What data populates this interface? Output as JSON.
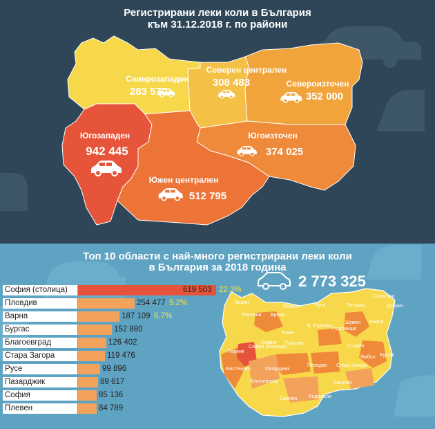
{
  "map_title": {
    "line1": "Регистрирани леки коли в България",
    "line2": "към 31.12.2018 г. по райони"
  },
  "regions": [
    {
      "name": "Северозападен",
      "value": "283 577",
      "color": "#f7d84a"
    },
    {
      "name": "Северен централен",
      "value": "308 483",
      "color": "#f4c045"
    },
    {
      "name": "Североизточен",
      "value": "352 000",
      "color": "#f2a43c"
    },
    {
      "name": "Югозападен",
      "value": "942 445",
      "color": "#e6553a"
    },
    {
      "name": "Югоизточен",
      "value": "374 025",
      "color": "#ef8a3a"
    },
    {
      "name": "Южен централен",
      "value": "512 795",
      "color": "#eb7436"
    }
  ],
  "chart_title": {
    "line1": "Топ 10 области с най-много регистрирани леки коли",
    "line2": "в България за 2018 година"
  },
  "total": "2 773 325",
  "province_labels": [
    "Видин",
    "Монтана",
    "Враца",
    "Плевен",
    "Ловеч",
    "Габрово",
    "В. Търново",
    "Русе",
    "Разград",
    "Силистра",
    "Добрич",
    "Шумен",
    "Търговище",
    "Варна",
    "Сливен",
    "Ямбол",
    "Бургас",
    "София",
    "София (столица)",
    "Перник",
    "Кюстендил",
    "Благоевград",
    "Пазарджик",
    "Пловдив",
    "Стара Загора",
    "Хасково",
    "Кърджали",
    "Смолян"
  ],
  "chart_data": {
    "type": "bar",
    "orientation": "horizontal",
    "categories": [
      "София (столица)",
      "Пловдив",
      "Варна",
      "Бургас",
      "Благоевград",
      "Стара Загора",
      "Русе",
      "Пазарджик",
      "София",
      "Плевен"
    ],
    "values": [
      619503,
      254477,
      187109,
      152880,
      126402,
      119476,
      99896,
      89617,
      85136,
      84789
    ],
    "value_labels": [
      "619 503",
      "254 477",
      "187 109",
      "152 880",
      "126 402",
      "119 476",
      "99 896",
      "89 617",
      "85 136",
      "84 789"
    ],
    "percent_labels": [
      "22.3%",
      "9.2%",
      "6.7%",
      "",
      "",
      "",
      "",
      "",
      "",
      ""
    ],
    "bar_colors": [
      "#e5533b",
      "#f2a25a",
      "#f2a25a",
      "#f2a25a",
      "#f2a25a",
      "#f2a25a",
      "#f2a25a",
      "#f2a25a",
      "#f2a25a",
      "#f2a25a"
    ]
  }
}
